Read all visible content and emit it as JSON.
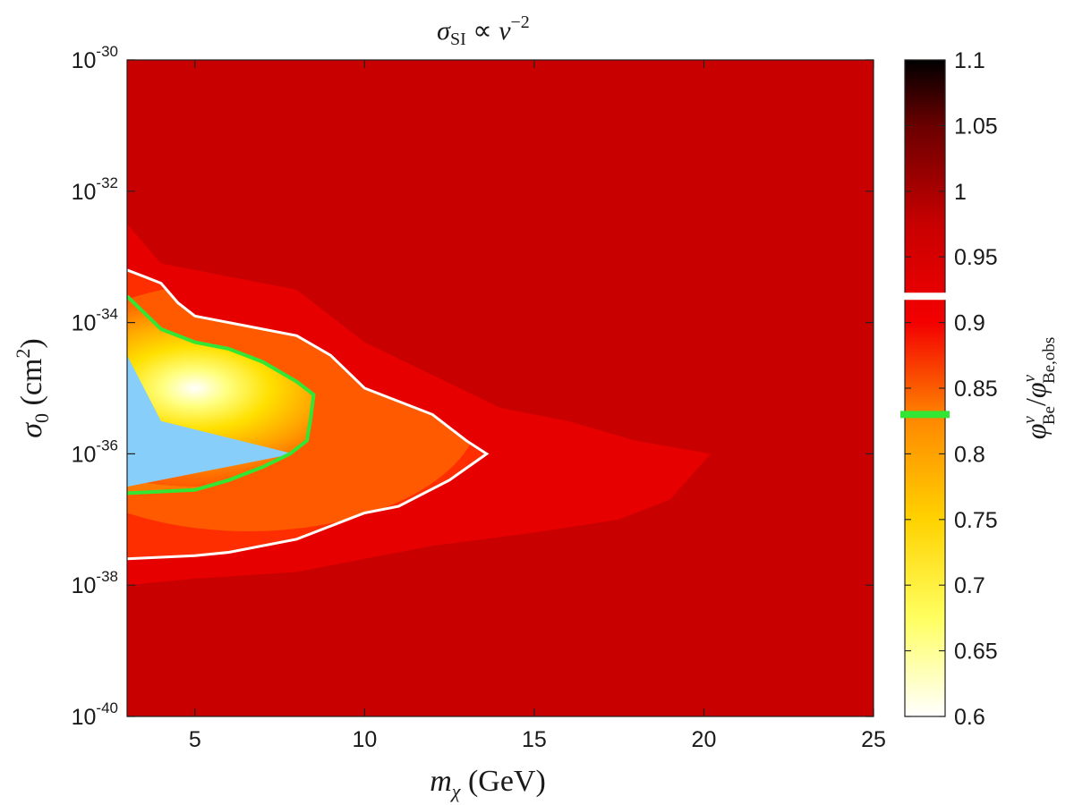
{
  "chart_data": {
    "type": "heatmap",
    "title": {
      "symbol": "σ",
      "subscript": "SI",
      "relation": " ∝ ",
      "variable": "v",
      "exponent": "−2"
    },
    "xlabel": {
      "symbol": "m",
      "subscript": "χ",
      "unit": " (GeV)"
    },
    "ylabel": {
      "symbol": "σ",
      "subscript": "0",
      "unit_open": " (cm",
      "unit_exponent": "2",
      "unit_close": ")"
    },
    "colorbar_label": {
      "numerator": "φ",
      "numerator_sub": "Be",
      "numerator_sup": "ν",
      "separator": "/",
      "denominator": "φ",
      "denominator_sub": "Be,obs",
      "denominator_sup": "ν"
    },
    "x_range": [
      3,
      25
    ],
    "x_ticks": [
      {
        "value": 5,
        "label": "5"
      },
      {
        "value": 10,
        "label": "10"
      },
      {
        "value": 15,
        "label": "15"
      },
      {
        "value": 20,
        "label": "20"
      },
      {
        "value": 25,
        "label": "25"
      }
    ],
    "y_scale": "log",
    "y_range_log10": [
      -40,
      -30
    ],
    "y_ticks": [
      {
        "log10": -30,
        "base": "10",
        "exp": "-30"
      },
      {
        "log10": -32,
        "base": "10",
        "exp": "-32"
      },
      {
        "log10": -34,
        "base": "10",
        "exp": "-34"
      },
      {
        "log10": -36,
        "base": "10",
        "exp": "-36"
      },
      {
        "log10": -38,
        "base": "10",
        "exp": "-38"
      },
      {
        "log10": -40,
        "base": "10",
        "exp": "-40"
      }
    ],
    "colorbar": {
      "range": [
        0.6,
        1.1
      ],
      "ticks": [
        "0.6",
        "0.65",
        "0.7",
        "0.75",
        "0.8",
        "0.85",
        "0.9",
        "0.95",
        "1",
        "1.05",
        "1.1"
      ],
      "markers": [
        {
          "value": 0.92,
          "color": "#ffffff"
        },
        {
          "value": 0.83,
          "color": "#33e633"
        }
      ]
    },
    "background_value": 0.95,
    "contours": [
      {
        "level": 0.94,
        "color": "#e60000",
        "fill": true,
        "points": [
          [
            3,
            -32.5
          ],
          [
            4,
            -33.1
          ],
          [
            6,
            -33.3
          ],
          [
            8,
            -33.5
          ],
          [
            10,
            -34.3
          ],
          [
            12,
            -34.8
          ],
          [
            14,
            -35.3
          ],
          [
            16,
            -35.5
          ],
          [
            18,
            -35.8
          ],
          [
            20.2,
            -36
          ],
          [
            19,
            -36.7
          ],
          [
            17.5,
            -37
          ],
          [
            15,
            -37.2
          ],
          [
            12,
            -37.4
          ],
          [
            10,
            -37.6
          ],
          [
            8,
            -37.8
          ],
          [
            5,
            -37.9
          ],
          [
            3,
            -38
          ]
        ]
      },
      {
        "level": 0.92,
        "color": "#ffffff",
        "fill": false,
        "line_width": 3,
        "points": [
          [
            3,
            -33.2
          ],
          [
            3.5,
            -33.3
          ],
          [
            4,
            -33.4
          ],
          [
            4.5,
            -33.7
          ],
          [
            5,
            -33.9
          ],
          [
            6,
            -34.0
          ],
          [
            8,
            -34.2
          ],
          [
            9,
            -34.5
          ],
          [
            10,
            -35.0
          ],
          [
            12,
            -35.4
          ],
          [
            13,
            -35.8
          ],
          [
            13.6,
            -36
          ],
          [
            12.5,
            -36.4
          ],
          [
            11,
            -36.8
          ],
          [
            10,
            -36.9
          ],
          [
            9,
            -37.1
          ],
          [
            8,
            -37.3
          ],
          [
            6,
            -37.5
          ],
          [
            5,
            -37.55
          ],
          [
            3,
            -37.6
          ]
        ]
      },
      {
        "level": 0.83,
        "color": "#33e633",
        "fill": false,
        "line_width": 4,
        "points": [
          [
            3,
            -33.6
          ],
          [
            4,
            -34.1
          ],
          [
            5,
            -34.3
          ],
          [
            6,
            -34.4
          ],
          [
            7,
            -34.6
          ],
          [
            8,
            -34.9
          ],
          [
            8.5,
            -35.1
          ],
          [
            8.4,
            -35.5
          ],
          [
            8.3,
            -35.8
          ],
          [
            7.8,
            -36.0
          ],
          [
            7,
            -36.2
          ],
          [
            6,
            -36.4
          ],
          [
            5,
            -36.55
          ],
          [
            3,
            -36.6
          ]
        ]
      }
    ],
    "hotspot": {
      "center": [
        5,
        -35.0
      ],
      "value": 0.6
    },
    "excluded_region": {
      "color": "#87cefa",
      "points": [
        [
          3,
          -34.5
        ],
        [
          4,
          -35.5
        ],
        [
          7.9,
          -36.0
        ],
        [
          3,
          -36.5
        ]
      ]
    }
  }
}
